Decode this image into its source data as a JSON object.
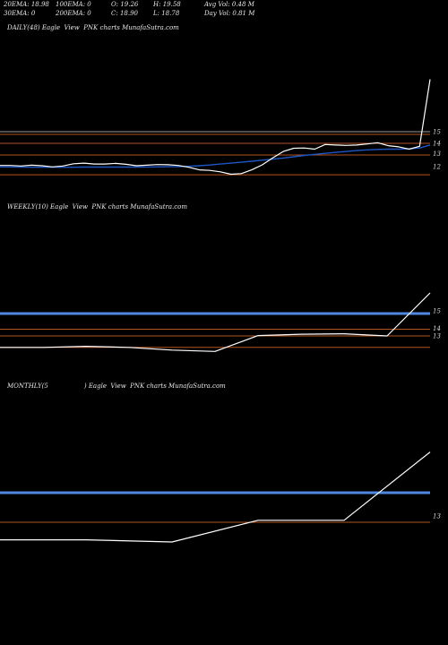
{
  "stats": {
    "ema20": "20EMA: 18.98",
    "ema100": "100EMA: 0",
    "open": "O: 19.26",
    "high": "H: 19.58",
    "avg_vol": "Avg Vol: 0.48  M",
    "ema30": "30EMA: 0",
    "ema200": "200EMA: 0",
    "close": "C: 18.90",
    "low": "L: 18.78",
    "day_vol": "Day Vol: 0.81 M"
  },
  "colors": {
    "background": "#000000",
    "price_line": "#ffffff",
    "ema_line": "#1f56c4",
    "level_line": "#b5541f",
    "grey_line": "#9a9a9a",
    "band": "#4f86e0"
  },
  "chart_data": [
    {
      "type": "line",
      "title": "DAILY(48) Eagle  View  PNK charts MunafaSutra.com",
      "yticks": [
        "15",
        "14",
        "13",
        "12"
      ],
      "series": [
        {
          "values": [
            12.1,
            12.1,
            12.05,
            12.12,
            12.08,
            11.98,
            12.05,
            12.25,
            12.3,
            12.22,
            12.22,
            12.28,
            12.2,
            12.08,
            12.12,
            12.18,
            12.16,
            12.1,
            11.95,
            11.72,
            11.68,
            11.55,
            11.35,
            11.4,
            11.72,
            12.15,
            12.75,
            13.3,
            13.58,
            13.6,
            13.5,
            13.9,
            13.85,
            13.82,
            13.85,
            13.95,
            14.05,
            13.8,
            13.7,
            13.5,
            13.75,
            19.5
          ]
        },
        {
          "values": [
            11.98,
            11.97,
            11.96,
            11.95,
            11.95,
            11.95,
            11.95,
            11.95,
            11.96,
            11.96,
            11.96,
            11.96,
            11.96,
            11.96,
            11.97,
            11.98,
            11.99,
            12.0,
            12.03,
            12.08,
            12.14,
            12.22,
            12.3,
            12.38,
            12.46,
            12.55,
            12.64,
            12.74,
            12.85,
            12.96,
            13.05,
            13.14,
            13.22,
            13.3,
            13.38,
            13.44,
            13.48,
            13.5,
            13.5,
            13.52,
            13.6,
            13.85
          ]
        }
      ]
    },
    {
      "type": "line",
      "title": "WEEKLY(10) Eagle  View  PNK charts MunafaSutra.com",
      "yticks": [
        "15",
        "14",
        "13"
      ],
      "series": [
        {
          "values": [
            11.3,
            11.3,
            11.45,
            11.3,
            10.9,
            10.7,
            13.05,
            13.25,
            13.32,
            13.0,
            19.4
          ]
        }
      ]
    },
    {
      "type": "line",
      "title": "MONTHLY(5                  ) Eagle  View  PNK charts MunafaSutra.com",
      "yticks": [
        "13"
      ],
      "series": [
        {
          "values": [
            10.8,
            10.8,
            10.6,
            12.6,
            12.6,
            18.9
          ]
        }
      ]
    }
  ]
}
